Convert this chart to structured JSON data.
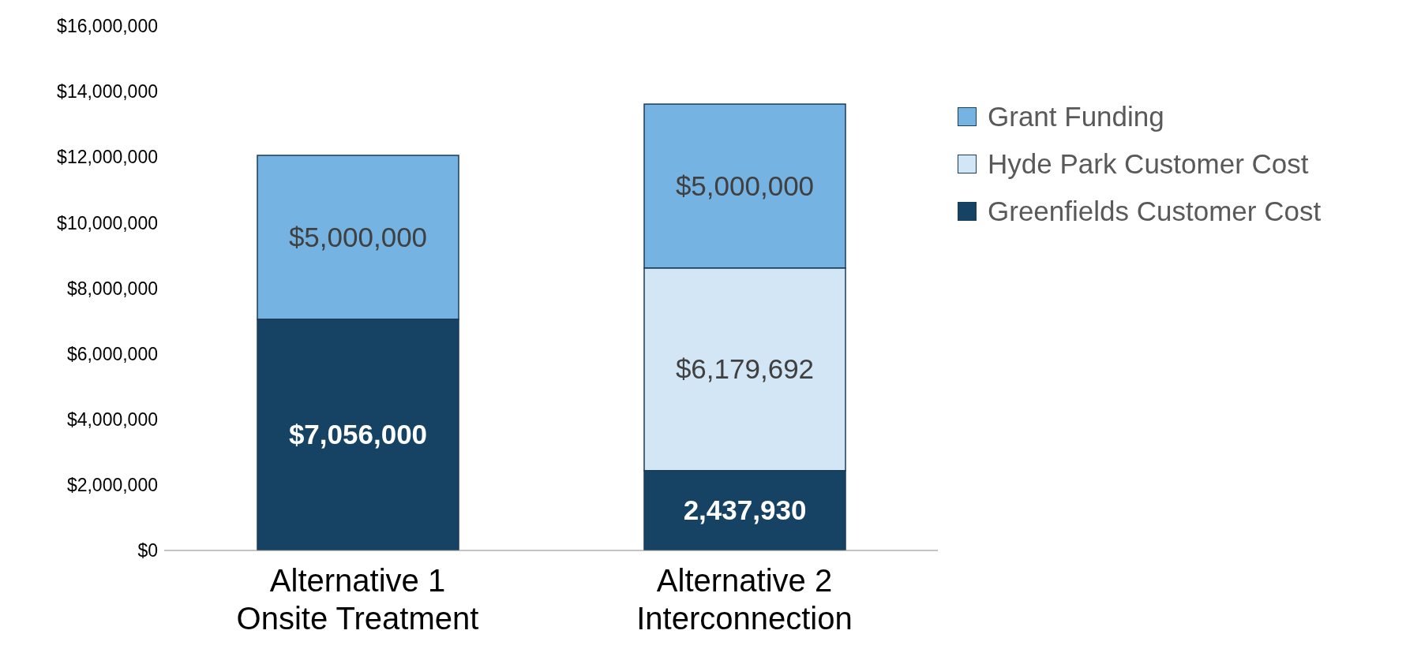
{
  "chart_data": {
    "type": "bar",
    "stacked": true,
    "categories": [
      "Alternative 1\nOnsite Treatment",
      "Alternative 2\nInterconnection"
    ],
    "series": [
      {
        "name": "Greenfields Customer Cost",
        "color": "#164363",
        "values": [
          7056000,
          2437930
        ],
        "value_labels": [
          "$7,056,000",
          "2,437,930"
        ]
      },
      {
        "name": "Hyde Park Customer Cost",
        "color": "#d2e6f5",
        "values": [
          null,
          6179692
        ],
        "value_labels": [
          null,
          "$6,179,692"
        ]
      },
      {
        "name": "Grant Funding",
        "color": "#75b3e2",
        "values": [
          5000000,
          5000000
        ],
        "value_labels": [
          "$5,000,000",
          "$5,000,000"
        ]
      }
    ],
    "ylim": [
      0,
      16000000
    ],
    "yticks": [
      {
        "value": 0,
        "label": "$0"
      },
      {
        "value": 2000000,
        "label": "$2,000,000"
      },
      {
        "value": 4000000,
        "label": "$4,000,000"
      },
      {
        "value": 6000000,
        "label": "$6,000,000"
      },
      {
        "value": 8000000,
        "label": "$8,000,000"
      },
      {
        "value": 10000000,
        "label": "$10,000,000"
      },
      {
        "value": 12000000,
        "label": "$12,000,000"
      },
      {
        "value": 14000000,
        "label": "$14,000,000"
      },
      {
        "value": 16000000,
        "label": "$16,000,000"
      }
    ],
    "grid": false,
    "legend": "right"
  }
}
